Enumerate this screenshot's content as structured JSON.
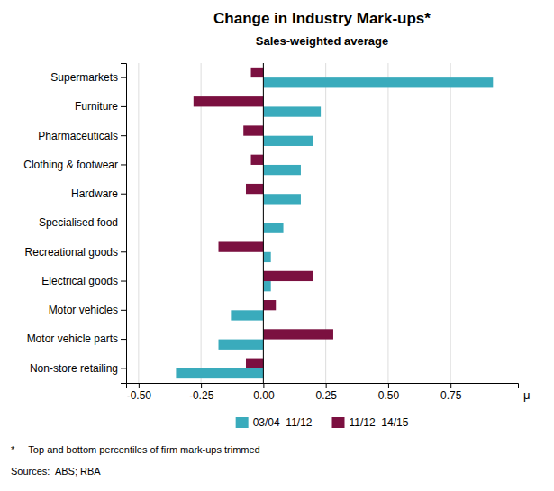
{
  "chart_data": {
    "type": "bar",
    "orientation": "horizontal",
    "title": "Change in Industry Mark-ups*",
    "subtitle": "Sales-weighted average",
    "x_label": "μ",
    "annotations": [
      "*     Top and bottom percentiles of firm mark-ups trimmed",
      "Sources:  ABS; RBA"
    ],
    "categories": [
      "Supermarkets",
      "Furniture",
      "Pharmaceuticals",
      "Clothing & footwear",
      "Hardware",
      "Specialised food",
      "Recreational goods",
      "Electrical goods",
      "Motor vehicles",
      "Motor vehicle parts",
      "Non-store retailing"
    ],
    "series": [
      {
        "name": "03/04–11/12",
        "color": "#3aabbc",
        "values": [
          0.92,
          0.23,
          0.2,
          0.15,
          0.15,
          0.08,
          0.03,
          0.03,
          -0.13,
          -0.18,
          -0.35
        ]
      },
      {
        "name": "11/12–14/15",
        "color": "#7b1040",
        "values": [
          -0.05,
          -0.28,
          -0.08,
          -0.05,
          -0.07,
          0.0,
          -0.18,
          0.2,
          0.05,
          0.28,
          -0.07
        ]
      }
    ],
    "xlim": [
      -0.55,
      1.02
    ],
    "xticks": [
      {
        "value": -0.5,
        "label": "-0.50"
      },
      -0.25,
      {
        "value": 0.0,
        "label": "0.00"
      },
      0.25,
      {
        "value": 0.5,
        "label": "0.50"
      },
      0.75
    ],
    "grid": true,
    "legend": "bottom"
  }
}
